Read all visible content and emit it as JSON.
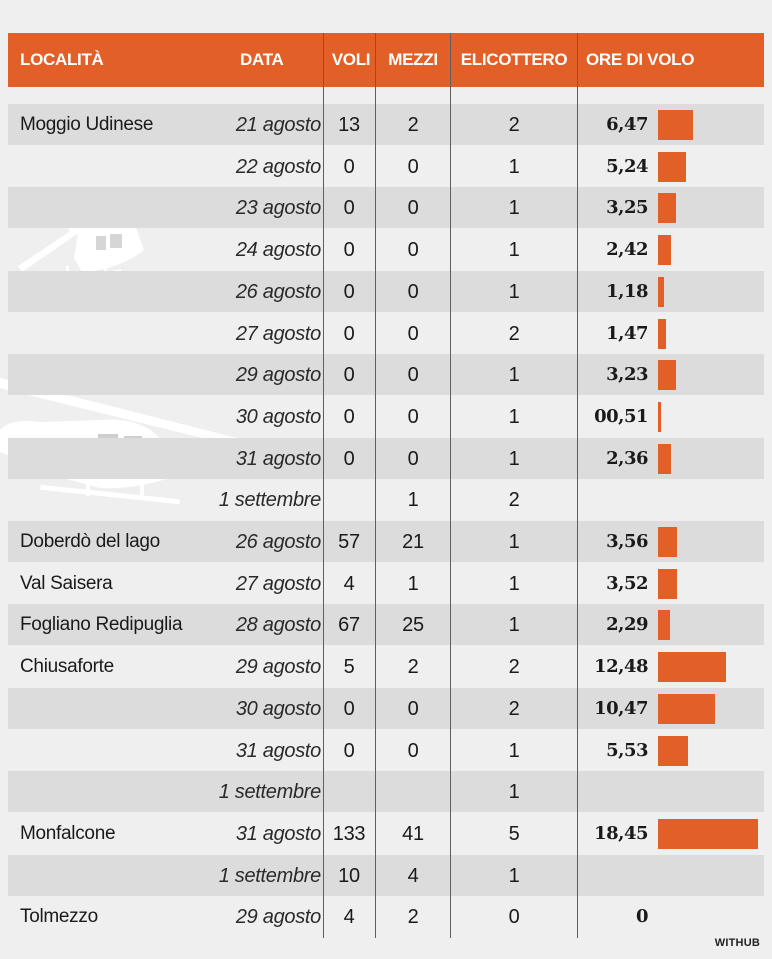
{
  "chart_data": {
    "type": "table",
    "columns": [
      "LOCALITÀ",
      "DATA",
      "VOLI",
      "MEZZI",
      "ELICOTTERO",
      "ORE DI VOLO"
    ],
    "bar_scale_max": 18.45,
    "rows": [
      {
        "localita": "Moggio Udinese",
        "data": "21 agosto",
        "voli": "13",
        "mezzi": "2",
        "elicottero": "2",
        "ore": "6,47",
        "ore_value": 6.47
      },
      {
        "localita": "",
        "data": "22 agosto",
        "voli": "0",
        "mezzi": "0",
        "elicottero": "1",
        "ore": "5,24",
        "ore_value": 5.24
      },
      {
        "localita": "",
        "data": "23 agosto",
        "voli": "0",
        "mezzi": "0",
        "elicottero": "1",
        "ore": "3,25",
        "ore_value": 3.25
      },
      {
        "localita": "",
        "data": "24 agosto",
        "voli": "0",
        "mezzi": "0",
        "elicottero": "1",
        "ore": "2,42",
        "ore_value": 2.42
      },
      {
        "localita": "",
        "data": "26 agosto",
        "voli": "0",
        "mezzi": "0",
        "elicottero": "1",
        "ore": "1,18",
        "ore_value": 1.18
      },
      {
        "localita": "",
        "data": "27 agosto",
        "voli": "0",
        "mezzi": "0",
        "elicottero": "2",
        "ore": "1,47",
        "ore_value": 1.47
      },
      {
        "localita": "",
        "data": "29 agosto",
        "voli": "0",
        "mezzi": "0",
        "elicottero": "1",
        "ore": "3,23",
        "ore_value": 3.23
      },
      {
        "localita": "",
        "data": "30 agosto",
        "voli": "0",
        "mezzi": "0",
        "elicottero": "1",
        "ore": "00,51",
        "ore_value": 0.51
      },
      {
        "localita": "",
        "data": "31 agosto",
        "voli": "0",
        "mezzi": "0",
        "elicottero": "1",
        "ore": "2,36",
        "ore_value": 2.36
      },
      {
        "localita": "",
        "data": "1 settembre",
        "voli": "",
        "mezzi": "1",
        "elicottero": "2",
        "ore": "",
        "ore_value": null
      },
      {
        "localita": "Doberdò del lago",
        "data": "26 agosto",
        "voli": "57",
        "mezzi": "21",
        "elicottero": "1",
        "ore": "3,56",
        "ore_value": 3.56
      },
      {
        "localita": "Val Saisera",
        "data": "27 agosto",
        "voli": "4",
        "mezzi": "1",
        "elicottero": "1",
        "ore": "3,52",
        "ore_value": 3.52
      },
      {
        "localita": "Fogliano Redipuglia",
        "data": "28 agosto",
        "voli": "67",
        "mezzi": "25",
        "elicottero": "1",
        "ore": "2,29",
        "ore_value": 2.29
      },
      {
        "localita": "Chiusaforte",
        "data": "29 agosto",
        "voli": "5",
        "mezzi": "2",
        "elicottero": "2",
        "ore": "12,48",
        "ore_value": 12.48
      },
      {
        "localita": "",
        "data": "30 agosto",
        "voli": "0",
        "mezzi": "0",
        "elicottero": "2",
        "ore": "10,47",
        "ore_value": 10.47
      },
      {
        "localita": "",
        "data": "31 agosto",
        "voli": "0",
        "mezzi": "0",
        "elicottero": "1",
        "ore": "5,53",
        "ore_value": 5.53
      },
      {
        "localita": "",
        "data": "1 settembre",
        "voli": "",
        "mezzi": "",
        "elicottero": "1",
        "ore": "",
        "ore_value": null
      },
      {
        "localita": "Monfalcone",
        "data": "31 agosto",
        "voli": "133",
        "mezzi": "41",
        "elicottero": "5",
        "ore": "18,45",
        "ore_value": 18.45
      },
      {
        "localita": "",
        "data": "1 settembre",
        "voli": "10",
        "mezzi": "4",
        "elicottero": "1",
        "ore": "",
        "ore_value": null
      },
      {
        "localita": "Tolmezzo",
        "data": "29 agosto",
        "voli": "4",
        "mezzi": "2",
        "elicottero": "0",
        "ore": "0",
        "ore_value": 0
      }
    ],
    "colors": {
      "header": "#e25f28",
      "bar": "#e25f28",
      "row_shade": "#dcdcdc",
      "background": "#efefef"
    }
  },
  "credit": "WITHUB",
  "decoration_icon": "helicopter-icon"
}
